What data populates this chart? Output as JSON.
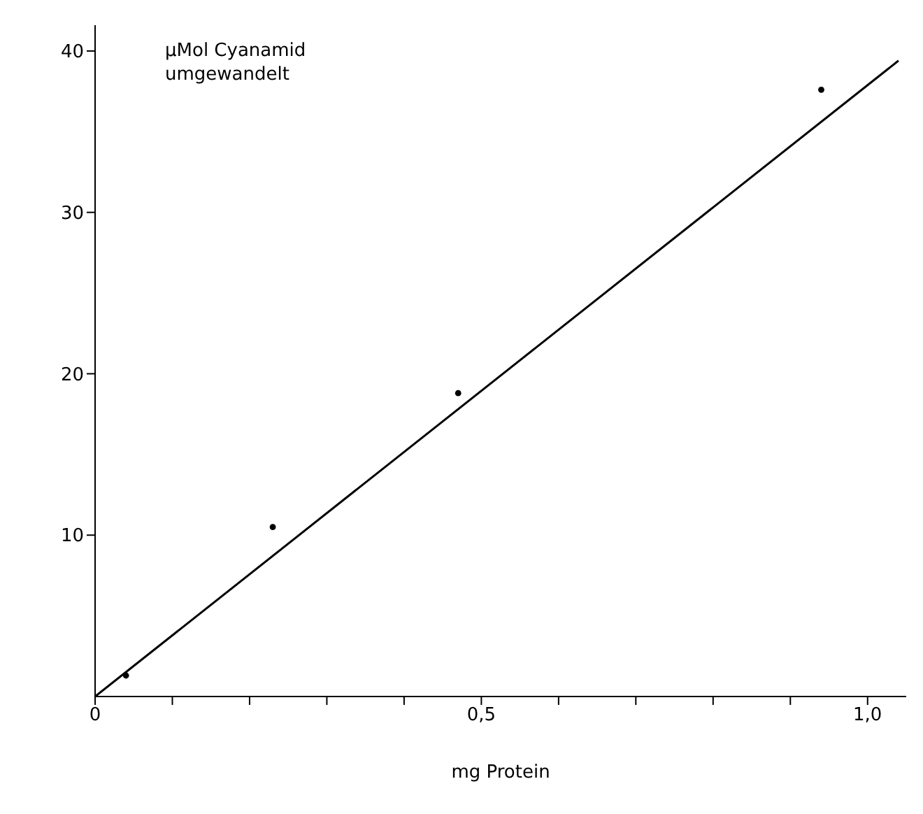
{
  "chart_data": {
    "type": "scatter",
    "xlabel": "mg Protein",
    "ylabel": "μMol Cyanamid\numgewandelt",
    "series": [
      {
        "color": "#000000",
        "marker": "circle",
        "x": [
          0.04,
          0.23,
          0.47,
          0.94
        ],
        "values": [
          1.3,
          10.5,
          18.8,
          37.6
        ]
      },
      {
        "type": "line",
        "color": "#000000",
        "marker": "none",
        "line_style": "solid",
        "x": [
          0,
          1.04
        ],
        "values": [
          0,
          39.4
        ]
      }
    ],
    "xlim": [
      0,
      1.05
    ],
    "ylim": [
      0,
      41.6
    ],
    "xticks": [
      {
        "value": 0,
        "label": "0"
      },
      {
        "value": 0.1,
        "label": null
      },
      {
        "value": 0.2,
        "label": null
      },
      {
        "value": 0.3,
        "label": null
      },
      {
        "value": 0.4,
        "label": null
      },
      {
        "value": 0.5,
        "label": "0,5"
      },
      {
        "value": 0.6,
        "label": null
      },
      {
        "value": 0.7,
        "label": null
      },
      {
        "value": 0.8,
        "label": null
      },
      {
        "value": 0.9,
        "label": null
      },
      {
        "value": 1,
        "label": "1,0"
      }
    ],
    "yticks": [
      10,
      20,
      30,
      40
    ],
    "grid": false
  }
}
